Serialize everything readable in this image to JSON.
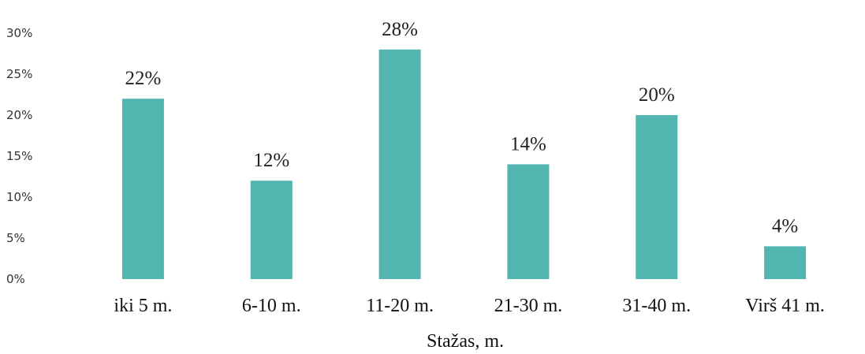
{
  "chart_data": {
    "type": "bar",
    "title": "",
    "xlabel": "Stažas, m.",
    "ylabel": "",
    "categories": [
      "iki 5 m.",
      "6-10 m.",
      "11-20 m.",
      "21-30 m.",
      "31-40 m.",
      "Virš 41 m."
    ],
    "values": [
      22,
      12,
      28,
      14,
      20,
      4
    ],
    "data_labels": [
      "22%",
      "12%",
      "28%",
      "14%",
      "20%",
      "4%"
    ],
    "ylim": [
      0,
      30
    ],
    "y_ticks": [
      0,
      5,
      10,
      15,
      20,
      25,
      30
    ],
    "y_tick_labels": [
      "0%",
      "5%",
      "10%",
      "15%",
      "20%",
      "25%",
      "30%"
    ],
    "grid": false,
    "legend": "none",
    "bar_color": "#52b5b0"
  }
}
